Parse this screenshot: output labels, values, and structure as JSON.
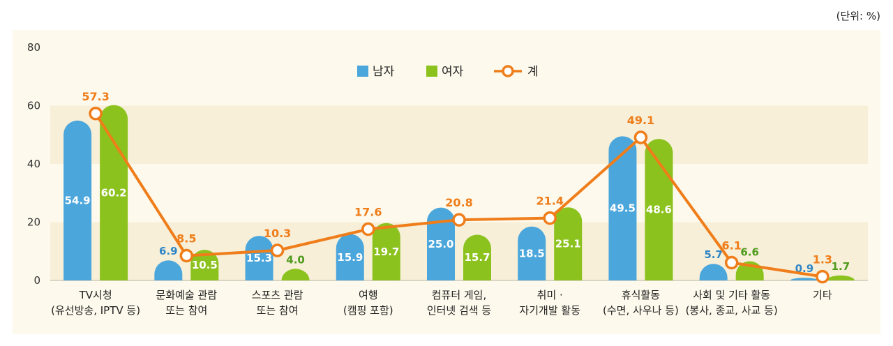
{
  "unit_label": "(단위: %)",
  "chart_data": {
    "type": "bar",
    "categories": [
      [
        "TV시청",
        "(유선방송, IPTV 등)"
      ],
      [
        "문화예술 관람",
        "또는 참여"
      ],
      [
        "스포츠 관람",
        "또는 참여"
      ],
      [
        "여행",
        "(캠핑 포함)"
      ],
      [
        "컴퓨터 게임,",
        "인터넷 검색 등"
      ],
      [
        "취미 ·",
        "자기개발 활동"
      ],
      [
        "휴식활동",
        "(수면, 사우나 등)"
      ],
      [
        "사회 및 기타 활동",
        "(봉사, 종교, 사교 등)"
      ],
      [
        "기타"
      ]
    ],
    "series": [
      {
        "name": "남자",
        "type": "bar",
        "color": "#4ba6dc",
        "values": [
          54.9,
          6.9,
          15.3,
          15.9,
          25.0,
          18.5,
          49.5,
          5.7,
          0.9
        ],
        "labels": [
          "54.9",
          "6.9",
          "15.3",
          "15.9",
          "25.0",
          "18.5",
          "49.5",
          "5.7",
          "0.9"
        ]
      },
      {
        "name": "여자",
        "type": "bar",
        "color": "#8cc21e",
        "values": [
          60.2,
          10.5,
          4.0,
          19.7,
          15.7,
          25.1,
          48.6,
          6.6,
          1.7
        ],
        "labels": [
          "60.2",
          "10.5",
          "4.0",
          "19.7",
          "15.7",
          "25.1",
          "48.6",
          "6.6",
          "1.7"
        ]
      },
      {
        "name": "계",
        "type": "line",
        "color": "#ef7d1a",
        "values": [
          57.3,
          8.5,
          10.3,
          17.6,
          20.8,
          21.4,
          49.1,
          6.1,
          1.3
        ],
        "labels": [
          "57.3",
          "8.5",
          "10.3",
          "17.6",
          "20.8",
          "21.4",
          "49.1",
          "6.1",
          "1.3"
        ]
      }
    ],
    "yticks": [
      "0",
      "20",
      "40",
      "60",
      "80"
    ],
    "ylim": [
      0,
      80
    ],
    "legend": "top-center",
    "colors": {
      "plot_band_light": "#fdf9ec",
      "plot_band_dark": "#f7efd8",
      "male_outside_label": "#2f86c6",
      "female_outside_label": "#4e9a1c"
    }
  }
}
